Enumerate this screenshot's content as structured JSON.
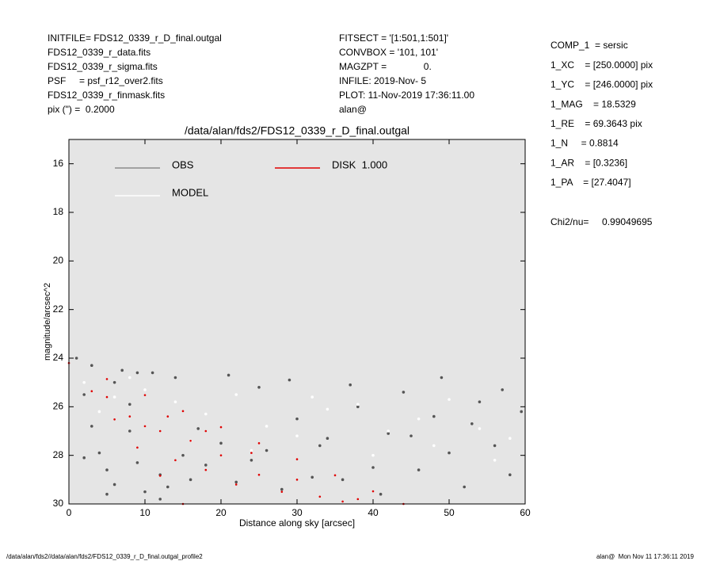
{
  "info": {
    "left": [
      "INITFILE= FDS12_0339_r_D_final.outgal",
      "FDS12_0339_r_data.fits",
      "FDS12_0339_r_sigma.fits",
      "PSF     = psf_r12_over2.fits",
      "FDS12_0339_r_finmask.fits",
      "pix (\") =  0.2000"
    ],
    "middle": [
      "FITSECT = '[1:501,1:501]'",
      "CONVBOX = '101, 101'",
      "MAGZPT =              0.",
      "INFILE: 2019-Nov- 5",
      "PLOT: 11-Nov-2019 17:36:11.00",
      "alan@"
    ],
    "right": [
      "COMP_1  = sersic",
      "1_XC    = [250.0000] pix",
      "1_YC    = [246.0000] pix",
      "1_MAG    = 18.5329",
      "1_RE    = 69.3643 pix",
      "1_N     = 0.8814",
      "1_AR    = [0.3236]",
      "1_PA    = [27.4047]"
    ],
    "chi2": "Chi2/nu=     0.99049695",
    "footer_left": "/data/alan/fds2//data/alan/fds2/FDS12_0339_r_D_final.outgal_profile2",
    "footer_right": "alan@  Mon Nov 11 17:36:11 2019"
  },
  "chart_data": {
    "type": "scatter",
    "title": "/data/alan/fds2/FDS12_0339_r_D_final.outgal",
    "xlabel": "Distance along sky [arcsec]",
    "ylabel": "magnitude/arcsec^2",
    "xlim": [
      0,
      60
    ],
    "ylim": [
      30,
      15
    ],
    "y_inverted": true,
    "xticks": [
      0,
      10,
      20,
      30,
      40,
      50,
      60
    ],
    "yticks": [
      16,
      18,
      20,
      22,
      24,
      26,
      28,
      30
    ],
    "series": [
      {
        "name": "OBS",
        "color": "#555555",
        "legend_color": "#8c8c8c",
        "x": [
          1,
          2,
          3,
          4,
          5,
          6,
          7,
          8,
          9,
          10,
          11,
          12,
          13,
          14,
          15,
          16,
          18,
          20,
          22,
          24,
          26,
          28,
          30,
          32,
          34,
          36,
          38,
          40,
          42,
          44,
          46,
          48,
          50,
          52,
          54,
          56,
          58,
          59.5,
          3,
          6,
          9,
          12,
          17,
          21,
          25,
          29,
          33,
          37,
          41,
          45,
          49,
          53,
          57,
          2,
          5,
          8
        ],
        "values": [
          24.0,
          25.5,
          26.8,
          27.9,
          28.6,
          29.2,
          24.5,
          27.0,
          28.3,
          29.5,
          24.6,
          28.8,
          29.3,
          24.8,
          28.0,
          29.0,
          28.4,
          27.5,
          29.1,
          28.2,
          27.8,
          29.4,
          26.5,
          28.9,
          27.3,
          29.0,
          26.0,
          28.5,
          27.1,
          25.4,
          28.6,
          26.4,
          27.9,
          29.3,
          25.8,
          27.6,
          28.8,
          26.2,
          24.3,
          25.0,
          24.6,
          29.8,
          26.9,
          24.7,
          25.2,
          24.9,
          27.6,
          25.1,
          29.6,
          27.2,
          24.8,
          26.7,
          25.3,
          28.1,
          29.6,
          25.9
        ]
      },
      {
        "name": "MODEL",
        "color": "#ffffff",
        "legend_color": "#ffffff",
        "x": [
          2,
          4,
          6,
          10,
          14,
          18,
          22,
          26,
          30,
          34,
          38,
          42,
          46,
          50,
          54,
          58,
          8,
          16,
          24,
          32,
          40,
          48,
          56
        ],
        "values": [
          25.0,
          26.2,
          25.6,
          25.3,
          25.8,
          26.3,
          25.5,
          26.8,
          27.2,
          26.1,
          25.9,
          27.0,
          26.5,
          25.7,
          26.9,
          27.3,
          24.8,
          27.4,
          27.8,
          25.6,
          28.0,
          27.6,
          28.2
        ]
      },
      {
        "name": "DISK  1.000",
        "color": "#e00000",
        "legend_color": "#e00000",
        "x": [
          0,
          5,
          10,
          15,
          20,
          25,
          30,
          35,
          40,
          44,
          3,
          6,
          9,
          12,
          15,
          5,
          8,
          10,
          12,
          14,
          16,
          18,
          20,
          22,
          25,
          28,
          30,
          33,
          36,
          38,
          24,
          18,
          13
        ],
        "values": [
          24.2,
          24.86,
          25.52,
          26.18,
          26.84,
          27.5,
          28.16,
          28.82,
          29.48,
          30.0,
          25.36,
          26.52,
          27.68,
          28.84,
          30.0,
          25.6,
          26.4,
          26.8,
          27.0,
          28.2,
          27.4,
          28.6,
          28.0,
          29.2,
          28.8,
          29.5,
          29.0,
          29.7,
          29.9,
          29.8,
          27.9,
          27.0,
          26.4
        ]
      }
    ]
  }
}
